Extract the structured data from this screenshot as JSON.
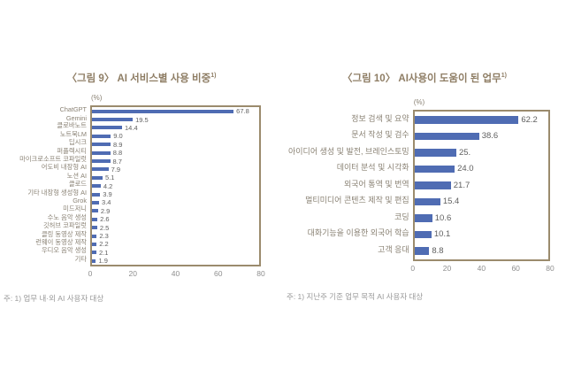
{
  "colors": {
    "background": "#ffffff",
    "bar": "#4f6cb3",
    "frame": "#9b8b6d",
    "title": "#8e7d64",
    "category_label": "#8a8274",
    "value_label": "#5f5f5f",
    "tick_label": "#8f8f8f",
    "footnote": "#9a9a9a"
  },
  "chart_data": [
    {
      "type": "bar",
      "orientation": "horizontal",
      "title": "〈그림 9〉 AI 서비스별 사용 비중",
      "title_sup": "1)",
      "unit": "(%)",
      "footnote": "주: 1) 업무 내·외 AI 사용자 대상",
      "legend": "none",
      "grid": false,
      "xlim": [
        0,
        80
      ],
      "x_ticks": [
        "0",
        "20",
        "40",
        "60",
        "80"
      ],
      "categories": [
        "ChatGPT",
        "Gemini",
        "클로바노트",
        "노트북LM",
        "딥시크",
        "퍼플렉시티",
        "마이크로소프트 코파일럿",
        "어도비 내장형 AI",
        "노션 AI",
        "클로드",
        "기타 내장형 생성형 AI",
        "Grok",
        "미드저니",
        "수노 음악 생성",
        "깃허브 코파일럿",
        "클링 동영상 제작",
        "런웨이 동영상 제작",
        "우디오 음악 생성",
        "기타"
      ],
      "values": [
        67.8,
        19.5,
        14.4,
        9.0,
        8.9,
        8.8,
        8.7,
        7.9,
        5.1,
        4.2,
        3.9,
        3.4,
        2.9,
        2.6,
        2.5,
        2.3,
        2.2,
        2.1,
        1.9
      ],
      "value_labels": [
        "67.8",
        "19.5",
        "14.4",
        "9.0",
        "8.9",
        "8.8",
        "8.7",
        "7.9",
        "5.1",
        "4.2",
        "3.9",
        "3.4",
        "2.9",
        "2.6",
        "2.5",
        "2.3",
        "2.2",
        "2.1",
        "1.9"
      ]
    },
    {
      "type": "bar",
      "orientation": "horizontal",
      "title": "〈그림 10〉 AI사용이 도움이 된 업무",
      "title_sup": "1)",
      "unit": "(%)",
      "footnote": "주: 1) 지난주 기준 업무 목적 AI 사용자 대상",
      "legend": "none",
      "grid": false,
      "xlim": [
        0,
        80
      ],
      "x_ticks": [
        "0",
        "20",
        "40",
        "60",
        "80"
      ],
      "categories": [
        "정보 검색 및 요약",
        "문서 작성 및 검수",
        "아이디어 생성 및 발전, 브레인스토밍",
        "데이터 분석 및 시각화",
        "외국어 통역 및 번역",
        "멀티미디어 콘텐츠 제작 및 편집",
        "코딩",
        "대화기능을 이용한 외국어 학습",
        "고객 응대"
      ],
      "values": [
        62.2,
        38.6,
        25.0,
        24.0,
        21.7,
        15.4,
        10.6,
        10.1,
        8.8
      ],
      "value_labels": [
        "62.2",
        "38.6",
        "25.",
        "24.0",
        "21.7",
        "15.4",
        "10.6",
        "10.1",
        "8.8"
      ]
    }
  ]
}
